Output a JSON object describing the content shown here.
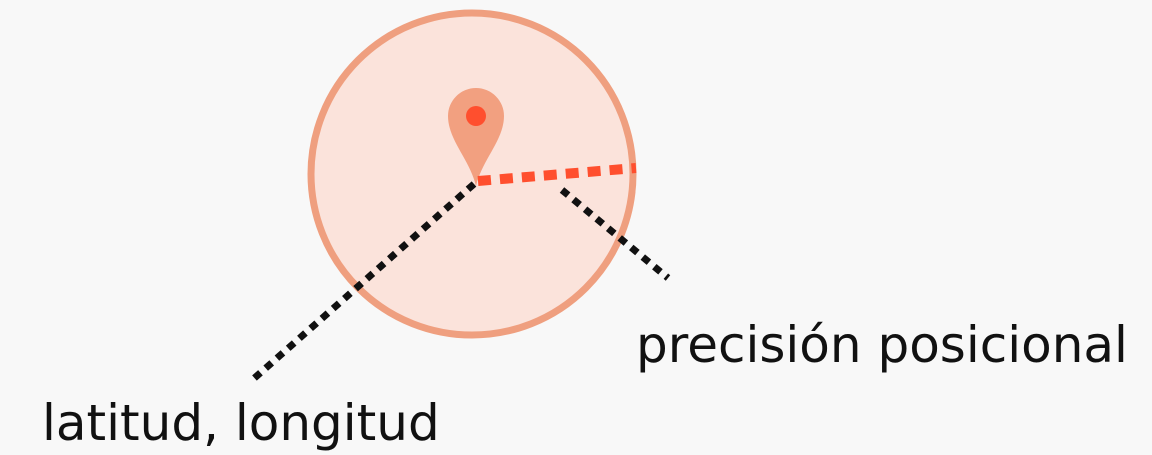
{
  "labels": {
    "position": "latitud, longitud",
    "accuracy": "precisión posicional"
  }
}
